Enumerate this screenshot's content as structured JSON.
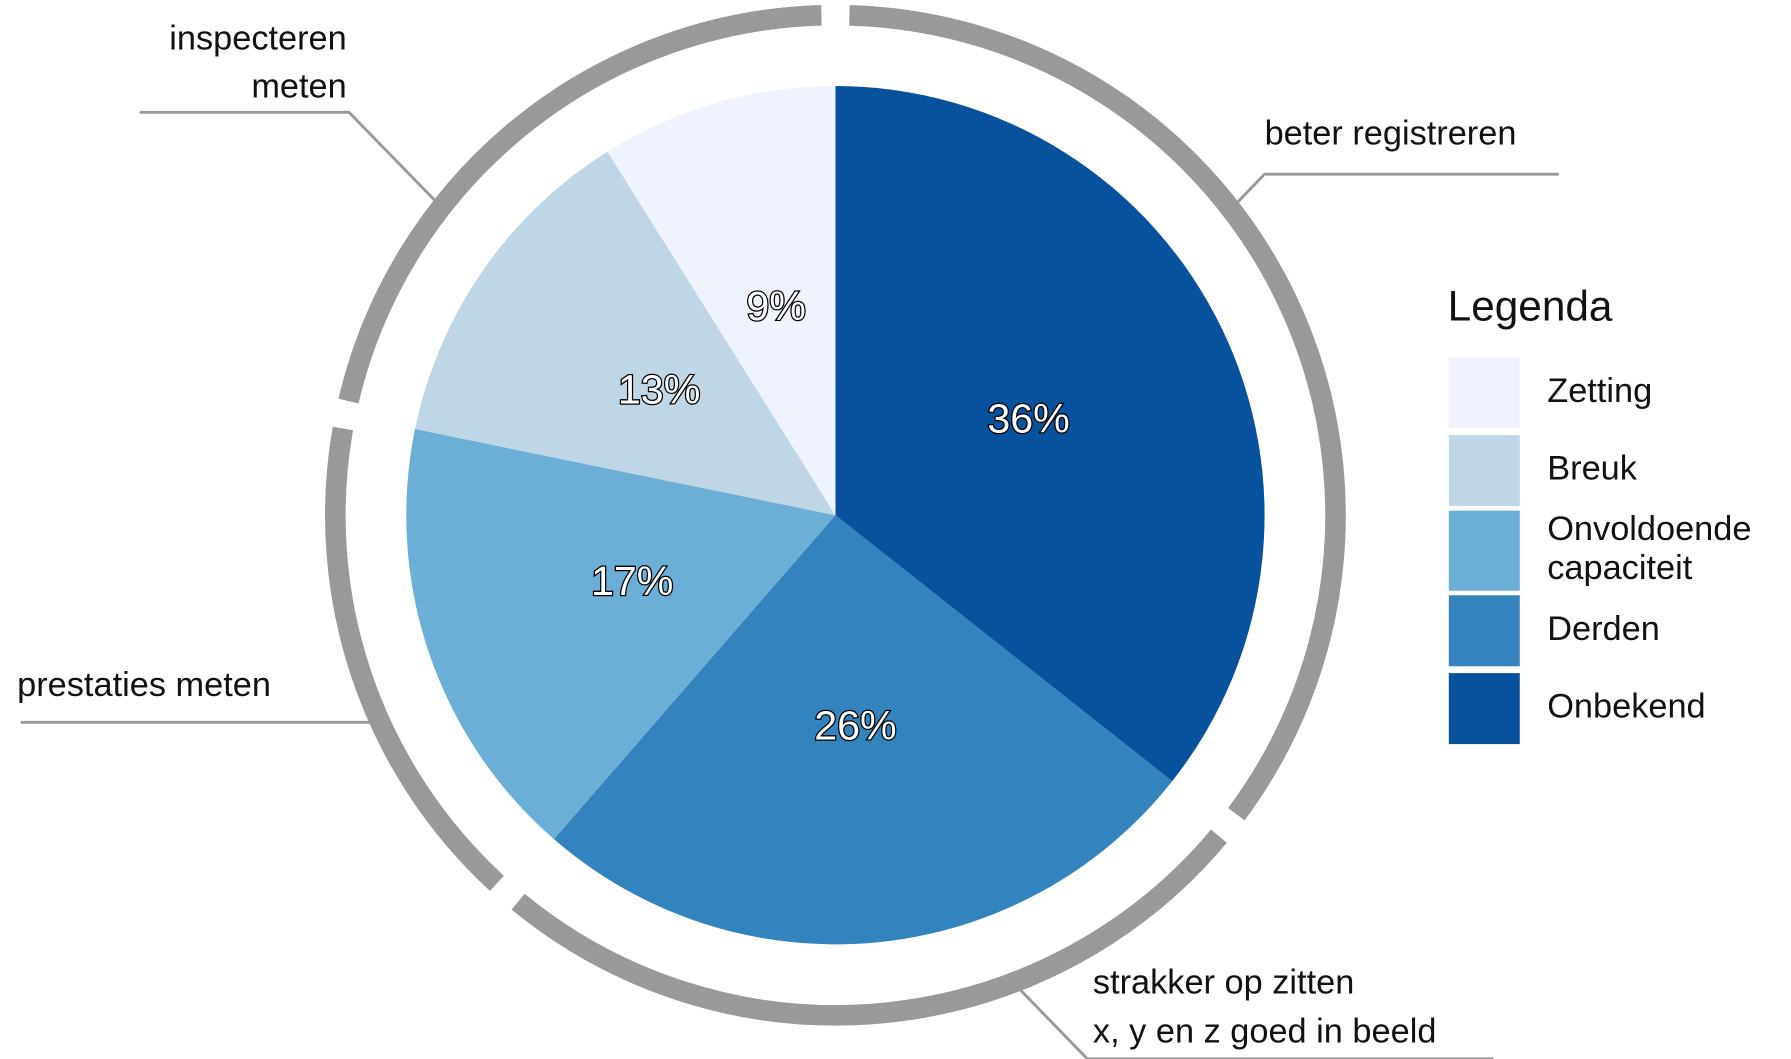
{
  "chart_data": {
    "type": "pie",
    "categories": [
      "Zetting",
      "Breuk",
      "Onvoldoende capaciteit",
      "Derden",
      "Onbekend"
    ],
    "values": [
      9,
      13,
      17,
      26,
      36
    ],
    "value_labels": [
      "9%",
      "13%",
      "17%",
      "26%",
      "36%"
    ],
    "colors": [
      "#eef3fd",
      "#bfd6e6",
      "#6baed6",
      "#3383be",
      "#08519c"
    ],
    "legend_title": "Legenda",
    "legend": "right",
    "annotations": [
      [
        "beter registreren"
      ],
      [
        "strakker op zitten",
        "x, y en z goed in beeld"
      ],
      [
        "prestaties meten"
      ],
      [
        "inspecteren",
        "meten"
      ]
    ]
  }
}
